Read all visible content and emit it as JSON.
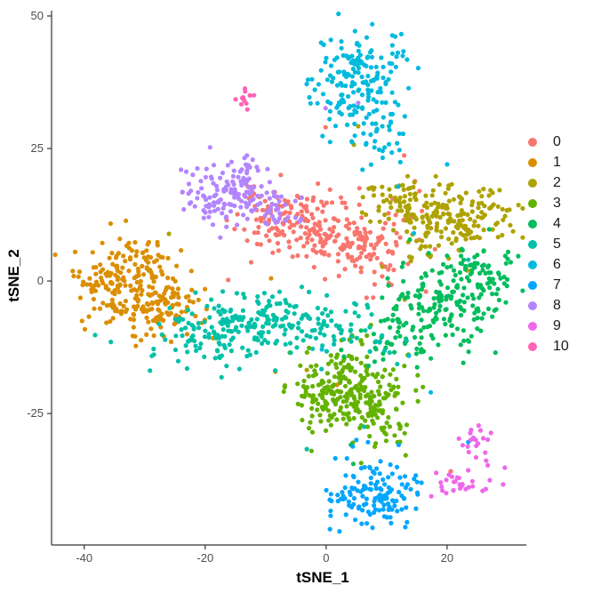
{
  "chart_data": {
    "type": "scatter",
    "title": "",
    "xlabel": "tSNE_1",
    "ylabel": "tSNE_2",
    "x_ticks": [
      "-40",
      "-20",
      "0",
      "20"
    ],
    "x_tick_values": [
      -40,
      -20,
      0,
      20
    ],
    "y_ticks": [
      "50",
      "25",
      "0",
      "-25"
    ],
    "y_tick_values": [
      50,
      25,
      0,
      -25
    ],
    "x_domain": [
      -45.4,
      33.1
    ],
    "y_domain": [
      -49.8,
      51.0
    ],
    "grid": "off",
    "legend_position": "right",
    "point_radius_px": 2.6,
    "render_seed": 11,
    "clusters": [
      {
        "label": "0",
        "color": "#F8766D",
        "center": [
          -2,
          9.5
        ],
        "approx_count": 280,
        "blobs": [
          {
            "x": -6.5,
            "y": 11.5,
            "sx": 4.2,
            "sy": 2.8,
            "n": 120
          },
          {
            "x": 2.5,
            "y": 7.5,
            "sx": 4.6,
            "sy": 3.2,
            "n": 120
          },
          {
            "x": 9.5,
            "y": 5,
            "sx": 2.5,
            "sy": 4,
            "n": 30
          }
        ],
        "strays": [
          [
            -0.1,
            29
          ],
          [
            12.9,
            23.7
          ],
          [
            20.6,
            -35.9
          ],
          [
            -16.2,
            0.2
          ],
          [
            14,
            12
          ],
          [
            16.5,
            -2
          ],
          [
            5.5,
            17.5
          ],
          [
            11,
            15.5
          ],
          [
            -7.5,
            20
          ],
          [
            18,
            6
          ]
        ]
      },
      {
        "label": "1",
        "color": "#DB8E00",
        "center": [
          -31,
          -2
        ],
        "approx_count": 284,
        "blobs": [
          {
            "x": -34.5,
            "y": -0.5,
            "sx": 3.6,
            "sy": 3.8,
            "n": 150
          },
          {
            "x": -26.5,
            "y": -4,
            "sx": 3.4,
            "sy": 3.4,
            "n": 105
          },
          {
            "x": -29,
            "y": 4.5,
            "sx": 2.5,
            "sy": 2,
            "n": 25
          }
        ],
        "strays": [
          [
            -9.1,
            0.5
          ],
          [
            -8.4,
            -17.1
          ],
          [
            1.8,
            -19.6
          ],
          [
            -41.5,
            5.5
          ]
        ]
      },
      {
        "label": "2",
        "color": "#AEA200",
        "center": [
          19,
          13
        ],
        "approx_count": 242,
        "blobs": [
          {
            "x": 20.5,
            "y": 12,
            "sx": 5.2,
            "sy": 3.2,
            "n": 190
          },
          {
            "x": 12,
            "y": 16,
            "sx": 3,
            "sy": 2.5,
            "n": 45
          }
        ],
        "strays": [
          [
            5.3,
            29.2
          ],
          [
            4.6,
            25.7
          ],
          [
            9.3,
            2.7
          ],
          [
            -3.2,
            -16.8
          ],
          [
            24,
            2
          ],
          [
            -26,
            8.9
          ],
          [
            13,
            -3.5
          ]
        ]
      },
      {
        "label": "3",
        "color": "#64B200",
        "center": [
          3.5,
          -20.5
        ],
        "approx_count": 303,
        "blobs": [
          {
            "x": 3,
            "y": -19,
            "sx": 4.4,
            "sy": 3.6,
            "n": 170
          },
          {
            "x": 7.5,
            "y": -24.5,
            "sx": 3.6,
            "sy": 3,
            "n": 90
          },
          {
            "x": -2,
            "y": -23,
            "sx": 2.6,
            "sy": 3,
            "n": 40
          }
        ],
        "strays": [
          [
            13.5,
            -14
          ],
          [
            -6,
            -13.5
          ],
          [
            16,
            -20
          ]
        ]
      },
      {
        "label": "4",
        "color": "#00BD5C",
        "center": [
          19.5,
          -4
        ],
        "approx_count": 265,
        "blobs": [
          {
            "x": 19.5,
            "y": -4,
            "sx": 5.2,
            "sy": 4.2,
            "n": 170
          },
          {
            "x": 26,
            "y": 2.5,
            "sx": 3,
            "sy": 2.5,
            "n": 45
          },
          {
            "x": 13.5,
            "y": -11,
            "sx": 3.2,
            "sy": 2.6,
            "n": 45
          }
        ],
        "strays": [
          [
            4.1,
            -30.9
          ],
          [
            7,
            -16
          ],
          [
            2.5,
            -13
          ],
          [
            28,
            -13.5
          ],
          [
            4.5,
            -34.5
          ]
        ]
      },
      {
        "label": "5",
        "color": "#00C1A7",
        "center": [
          -11,
          -9
        ],
        "approx_count": 282,
        "blobs": [
          {
            "x": -17,
            "y": -9.5,
            "sx": 5.4,
            "sy": 3.4,
            "n": 150
          },
          {
            "x": -5.5,
            "y": -7,
            "sx": 4,
            "sy": 2.8,
            "n": 80
          },
          {
            "x": 3.5,
            "y": -9.5,
            "sx": 4,
            "sy": 2.6,
            "n": 45
          }
        ],
        "strays": [
          [
            -38.2,
            -10.2
          ],
          [
            -35.6,
            -11.5
          ],
          [
            6.3,
            -27.5
          ],
          [
            -3.2,
            -31.7
          ],
          [
            10.5,
            -13.5
          ],
          [
            23.5,
            4
          ],
          [
            -23,
            -16.5
          ]
        ]
      },
      {
        "label": "6",
        "color": "#00BADE",
        "center": [
          6,
          37
        ],
        "approx_count": 212,
        "blobs": [
          {
            "x": 5,
            "y": 39.5,
            "sx": 3.6,
            "sy": 4.2,
            "n": 140
          },
          {
            "x": 8.5,
            "y": 28.5,
            "sx": 2.8,
            "sy": 3.2,
            "n": 45
          },
          {
            "x": 3,
            "y": 32.5,
            "sx": 2,
            "sy": 2,
            "n": 20
          }
        ],
        "strays": [
          [
            11.9,
            17.8
          ],
          [
            14.5,
            9
          ],
          [
            13.7,
            -14.1
          ],
          [
            17.3,
            -21
          ],
          [
            -0.7,
            -12.9
          ],
          [
            20,
            22
          ],
          [
            6,
            21
          ]
        ]
      },
      {
        "label": "7",
        "color": "#00A6FF",
        "center": [
          8,
          -40.5
        ],
        "approx_count": 137,
        "blobs": [
          {
            "x": 8,
            "y": -40.5,
            "sx": 3.9,
            "sy": 3.4,
            "n": 135
          }
        ],
        "strays": [
          [
            23.5,
            -30.4
          ],
          [
            5,
            -30
          ]
        ]
      },
      {
        "label": "8",
        "color": "#B385FF",
        "center": [
          -14.5,
          16.5
        ],
        "approx_count": 179,
        "blobs": [
          {
            "x": -15.5,
            "y": 17,
            "sx": 4.3,
            "sy": 2.9,
            "n": 145
          },
          {
            "x": -9,
            "y": 13.5,
            "sx": 2.5,
            "sy": 2.2,
            "n": 30
          }
        ],
        "strays": [
          [
            -0.1,
            32.6
          ],
          [
            -17.5,
            8.2
          ],
          [
            5.3,
            33.6
          ],
          [
            -24,
            21
          ]
        ]
      },
      {
        "label": "9",
        "color": "#EF67EB",
        "center": [
          23.5,
          -35
        ],
        "approx_count": 50,
        "blobs": [
          {
            "x": 25,
            "y": -31,
            "sx": 1.6,
            "sy": 1.8,
            "n": 22
          },
          {
            "x": 22.5,
            "y": -38,
            "sx": 2.6,
            "sy": 1.3,
            "n": 28
          }
        ],
        "strays": []
      },
      {
        "label": "10",
        "color": "#FF63B6",
        "center": [
          -13.4,
          34.3
        ],
        "approx_count": 11,
        "blobs": [
          {
            "x": -13.4,
            "y": 34.3,
            "sx": 0.9,
            "sy": 1.3,
            "n": 11
          }
        ],
        "strays": []
      }
    ]
  },
  "style": {
    "background": "#ffffff",
    "axis_line_color": "#333333",
    "tick_color": "#333333",
    "tick_label_color": "#4d4d4d",
    "axis_title_color": "#000000",
    "legend_label_color": "#1a1a1a"
  }
}
